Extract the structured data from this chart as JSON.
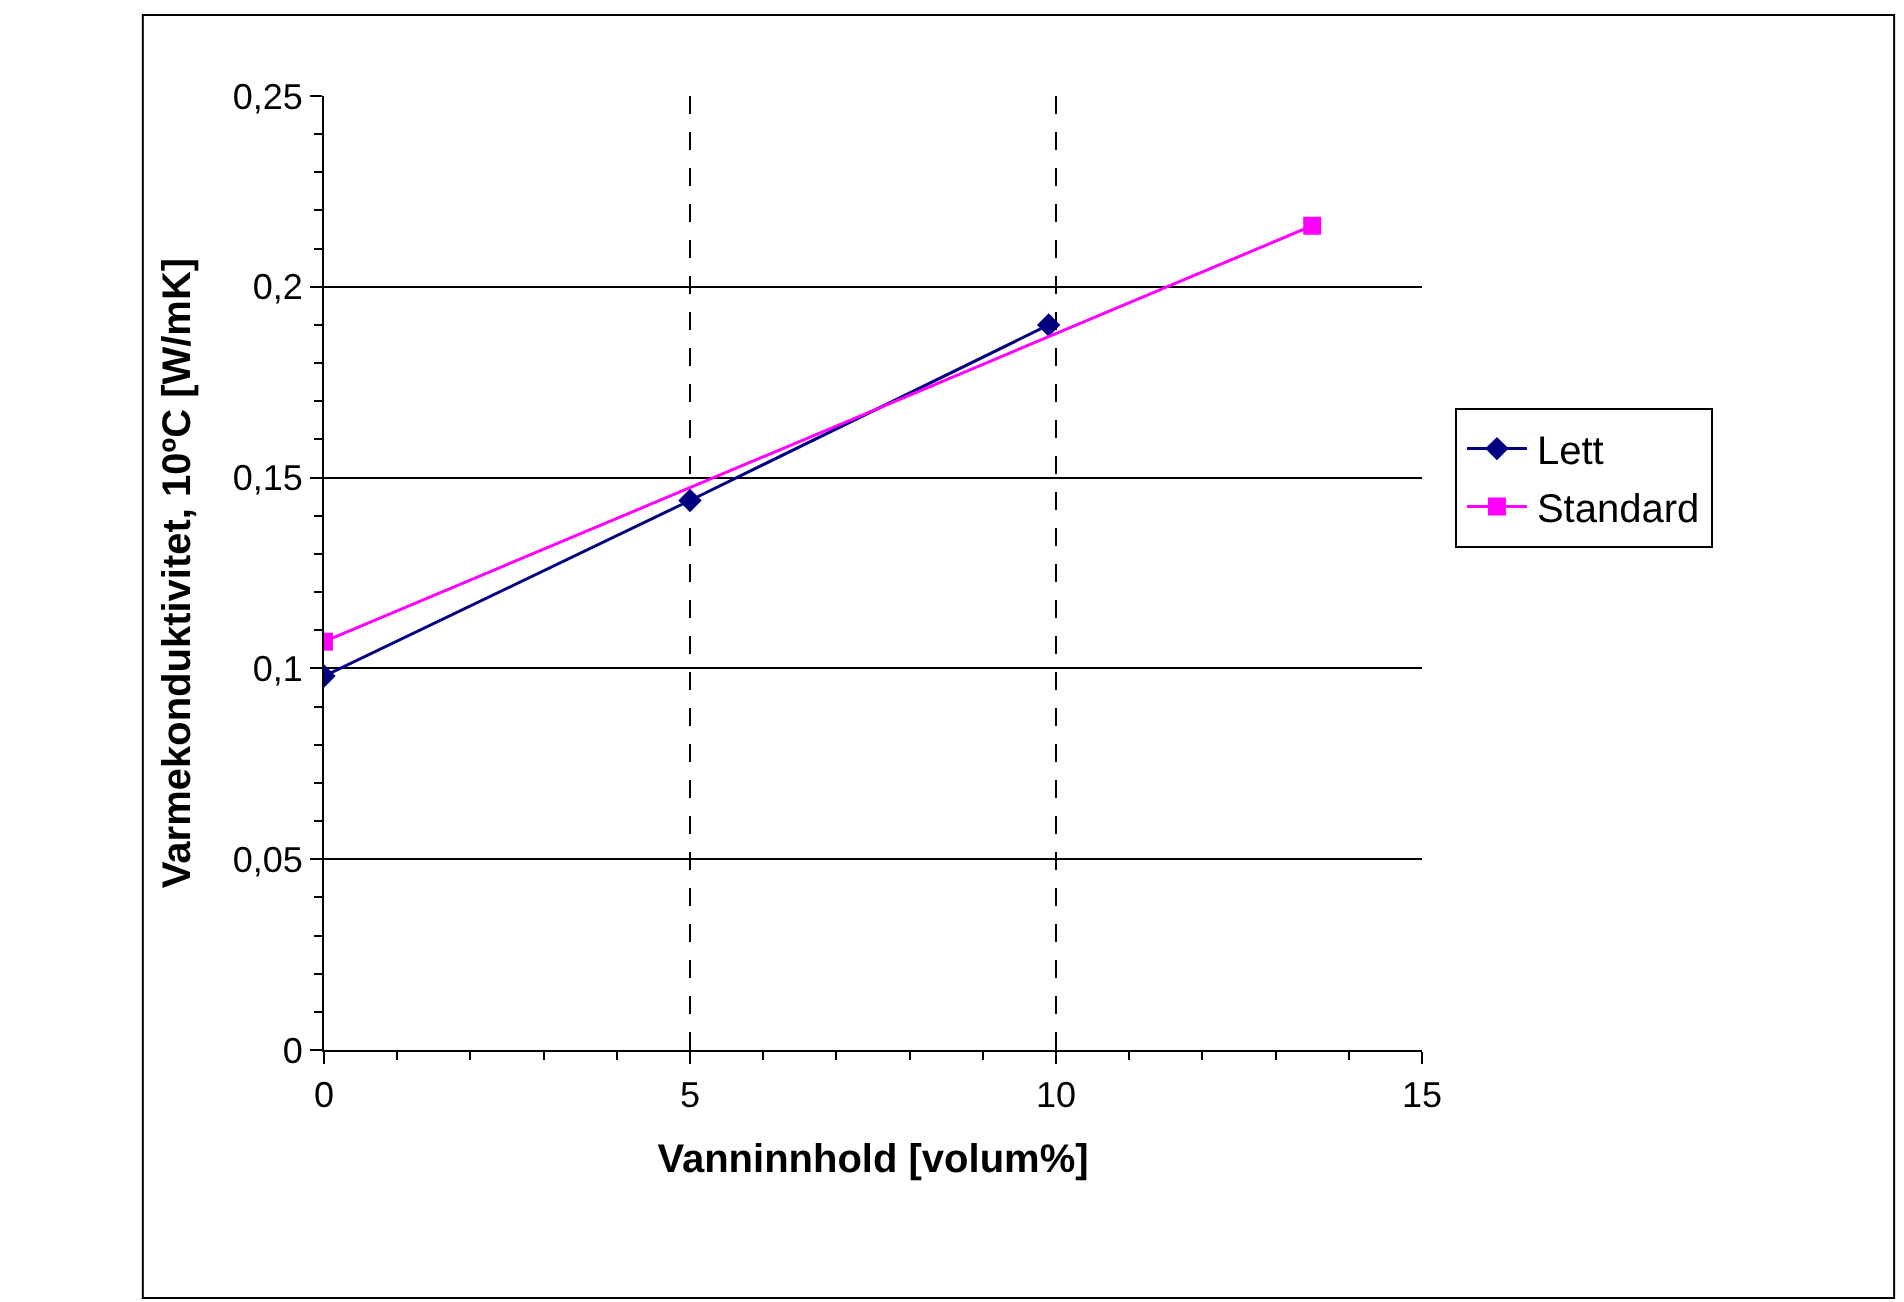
{
  "chart_data": {
    "type": "line",
    "xlabel": "Vanninnhold [volum%]",
    "ylabel": "Varmekonduktivitet, 10ºC [W/mK]",
    "xlim": [
      0,
      15
    ],
    "xticks": [
      0,
      5,
      10,
      15
    ],
    "ylim": [
      0,
      0.25
    ],
    "yticks": [
      {
        "value": 0,
        "label": "0"
      },
      {
        "value": 0.05,
        "label": "0,05"
      },
      {
        "value": 0.1,
        "label": "0,1"
      },
      {
        "value": 0.15,
        "label": "0,15"
      },
      {
        "value": 0.2,
        "label": "0,2"
      },
      {
        "value": 0.25,
        "label": "0,25"
      }
    ],
    "grid": true,
    "legend": "right",
    "series": [
      {
        "name": "Lett",
        "color": "#000080",
        "marker": "diamond",
        "x": [
          0,
          5.0,
          9.9
        ],
        "values": [
          0.098,
          0.144,
          0.19
        ]
      },
      {
        "name": "Standard",
        "color": "#ff00ff",
        "marker": "square",
        "x": [
          0,
          13.5
        ],
        "values": [
          0.107,
          0.216
        ]
      }
    ]
  }
}
